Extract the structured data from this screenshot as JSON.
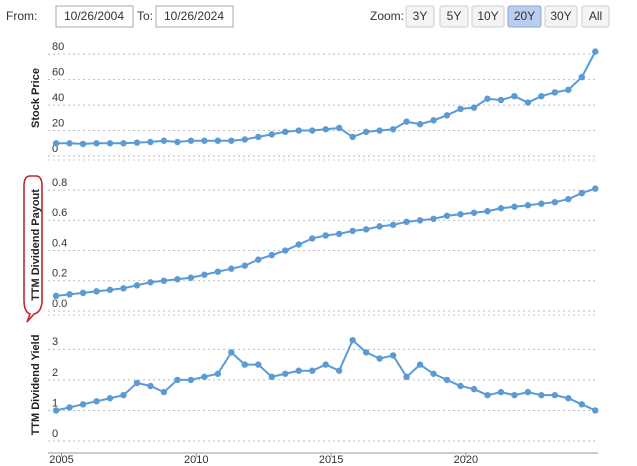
{
  "controls": {
    "from_label": "From:",
    "from_date": "10/26/2004",
    "to_label": "To:",
    "to_date": "10/26/2024",
    "zoom_label": "Zoom:",
    "zoom_options": [
      "3Y",
      "5Y",
      "10Y",
      "20Y",
      "30Y",
      "All"
    ],
    "zoom_selected": "20Y"
  },
  "chart_data": [
    {
      "type": "line",
      "ylabel": "Stock Price",
      "color": "#5b9bd5",
      "grid": true,
      "x": [
        2004.8,
        2005.3,
        2005.8,
        2006.3,
        2006.8,
        2007.3,
        2007.8,
        2008.3,
        2008.8,
        2009.3,
        2009.8,
        2010.3,
        2010.8,
        2011.3,
        2011.8,
        2012.3,
        2012.8,
        2013.3,
        2013.8,
        2014.3,
        2014.8,
        2015.3,
        2015.8,
        2016.3,
        2016.8,
        2017.3,
        2017.8,
        2018.3,
        2018.8,
        2019.3,
        2019.8,
        2020.3,
        2020.8,
        2021.3,
        2021.8,
        2022.3,
        2022.8,
        2023.3,
        2023.8,
        2024.3,
        2024.8
      ],
      "values": [
        10,
        10,
        9.5,
        10,
        10,
        10,
        10.5,
        11,
        12,
        11,
        12,
        12,
        12,
        12,
        13,
        15,
        17,
        19,
        20,
        20,
        21,
        22,
        15,
        19,
        20,
        21,
        27,
        25,
        28,
        32,
        37,
        38,
        45,
        44,
        47,
        42,
        47,
        50,
        52,
        62,
        82
      ],
      "xlim": [
        2004.5,
        2024.9
      ],
      "ylim": [
        0,
        88
      ],
      "yticks": [
        0,
        20,
        40,
        60,
        80
      ]
    },
    {
      "type": "line",
      "ylabel": "TTM Dividend Payout",
      "color": "#5b9bd5",
      "grid": true,
      "x": [
        2004.8,
        2005.3,
        2005.8,
        2006.3,
        2006.8,
        2007.3,
        2007.8,
        2008.3,
        2008.8,
        2009.3,
        2009.8,
        2010.3,
        2010.8,
        2011.3,
        2011.8,
        2012.3,
        2012.8,
        2013.3,
        2013.8,
        2014.3,
        2014.8,
        2015.3,
        2015.8,
        2016.3,
        2016.8,
        2017.3,
        2017.8,
        2018.3,
        2018.8,
        2019.3,
        2019.8,
        2020.3,
        2020.8,
        2021.3,
        2021.8,
        2022.3,
        2022.8,
        2023.3,
        2023.8,
        2024.3,
        2024.8
      ],
      "values": [
        0.1,
        0.11,
        0.12,
        0.13,
        0.14,
        0.15,
        0.17,
        0.19,
        0.2,
        0.21,
        0.22,
        0.24,
        0.26,
        0.28,
        0.3,
        0.34,
        0.37,
        0.4,
        0.44,
        0.48,
        0.5,
        0.51,
        0.53,
        0.54,
        0.56,
        0.57,
        0.59,
        0.6,
        0.61,
        0.63,
        0.64,
        0.65,
        0.66,
        0.68,
        0.69,
        0.7,
        0.71,
        0.72,
        0.74,
        0.78,
        0.81
      ],
      "xlim": [
        2004.5,
        2024.9
      ],
      "ylim": [
        0,
        0.88
      ],
      "yticks": [
        {
          "value": 0,
          "label": "0.0"
        },
        0.2,
        0.4,
        0.6,
        0.8
      ]
    },
    {
      "type": "line",
      "ylabel": "TTM Dividend Yield",
      "color": "#5b9bd5",
      "grid": true,
      "x": [
        2004.8,
        2005.3,
        2005.8,
        2006.3,
        2006.8,
        2007.3,
        2007.8,
        2008.3,
        2008.8,
        2009.3,
        2009.8,
        2010.3,
        2010.8,
        2011.3,
        2011.8,
        2012.3,
        2012.8,
        2013.3,
        2013.8,
        2014.3,
        2014.8,
        2015.3,
        2015.8,
        2016.3,
        2016.8,
        2017.3,
        2017.8,
        2018.3,
        2018.8,
        2019.3,
        2019.8,
        2020.3,
        2020.8,
        2021.3,
        2021.8,
        2022.3,
        2022.8,
        2023.3,
        2023.8,
        2024.3,
        2024.8
      ],
      "values": [
        1.0,
        1.1,
        1.2,
        1.3,
        1.4,
        1.5,
        1.9,
        1.8,
        1.6,
        2.0,
        2.0,
        2.1,
        2.2,
        2.9,
        2.5,
        2.5,
        2.1,
        2.2,
        2.3,
        2.3,
        2.5,
        2.3,
        3.3,
        2.9,
        2.7,
        2.8,
        2.1,
        2.5,
        2.2,
        2.0,
        1.8,
        1.7,
        1.5,
        1.6,
        1.5,
        1.6,
        1.5,
        1.5,
        1.4,
        1.2,
        1.0
      ],
      "xlim": [
        2004.5,
        2024.9
      ],
      "ylim": [
        0,
        3.6
      ],
      "yticks": [
        0,
        1,
        2,
        3
      ],
      "xticks": [
        2005,
        2010,
        2015,
        2020
      ]
    }
  ]
}
